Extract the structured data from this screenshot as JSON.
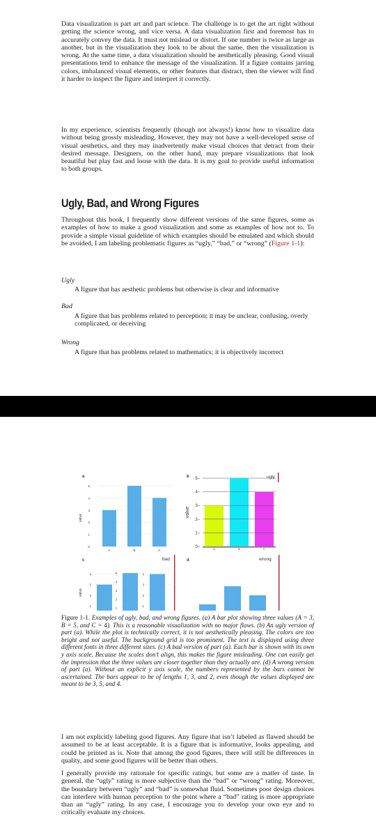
{
  "page1": {
    "para1": "Data visualization is part art and part science. The challenge is to get the art right without getting the science wrong, and vice versa. A data visualization first and foremost has to accurately convey the data. It must not mislead or distort. If one number is twice as large as another, but in the visualization they look to be about the same, then the visualization is wrong. At the same time, a data visualization should be aesthetically pleasing. Good visual presentations tend to enhance the message of the visualization. If a figure contains jarring colors, imbalanced visual elements, or other features that distract, then the viewer will find it harder to inspect the figure and interpret it correctly.",
    "para2": "In my experience, scientists frequently (though not always!) know how to visualize data without being grossly misleading. However, they may not have a well-developed sense of visual aesthetics, and they may inadvertently make visual choices that detract from their desired message. Designers, on the other hand, may prepare visualizations that look beautiful but play fast and loose with the data. It is my goal to provide useful information to both groups.",
    "heading": "Ugly, Bad, and Wrong Figures",
    "para3_before": "Throughout this book, I frequently show different versions of the same figures, some as examples of how to make a good visualization and some as examples of how not to. To provide a simple visual guideline of which examples should be emulated and which should be avoided, I am labeling problematic figures as “ugly,” “bad,” or “wrong” (",
    "para3_ref": "Figure 1-1",
    "para3_after": "):",
    "terms": [
      {
        "term": "Ugly",
        "definition": "A figure that has aesthetic problems but otherwise is clear and informative"
      },
      {
        "term": "Bad",
        "definition": "A figure that has problems related to perception; it may be unclear, confusing, overly complicated, or deceiving"
      },
      {
        "term": "Wrong",
        "definition": "A figure that has problems related to mathematics; it is objectively incorrect"
      }
    ]
  },
  "figure": {
    "panel_labels": [
      "a",
      "b",
      "c",
      "d"
    ],
    "flags": {
      "ugly": "ugly",
      "bad": "bad",
      "wrong": "wrong"
    },
    "ylabel": "value",
    "caption_label": "Figure 1-1.",
    "caption": "Examples of ugly, bad, and wrong figures. (a) A bar plot showing three values (A = 3, B = 5, and C = 4). This is a reasonable visualization with no major flaws. (b) An ugly version of part (a). While the plot is technically correct, it is not aesthetically pleasing. The colors are too bright and not useful. The background grid is too prominent. The text is displayed using three different fonts in three different sizes. (c) A bad version of part (a). Each bar is shown with its own y axis scale. Because the scales don’t align, this makes the figure misleading. One can easily get the impression that the three values are closer together than they actually are. (d) A wrong version of part (a). Without an explicit y axis scale, the numbers represented by the bars cannot be ascertained. The bars appear to be of lengths 1, 3, and 2, even though the values displayed are meant to be 3, 5, and 4."
  },
  "chart_data": [
    {
      "type": "bar",
      "panel": "a",
      "categories": [
        "A",
        "B",
        "C"
      ],
      "values": [
        3,
        5,
        4
      ],
      "ylabel": "value",
      "ylim": [
        0,
        5
      ],
      "yticks": [
        "0",
        "1",
        "2",
        "3",
        "4",
        "5"
      ],
      "color": "#5aaee8",
      "grid": true
    },
    {
      "type": "bar",
      "panel": "b",
      "flag": "ugly",
      "categories": [
        "A",
        "B",
        "C"
      ],
      "values": [
        3,
        5,
        4
      ],
      "ylabel": "value",
      "ylim": [
        0,
        5
      ],
      "yticks": [
        "0",
        "1",
        "2",
        "3",
        "4",
        "5"
      ],
      "colors": [
        "#d8f80e",
        "#12e8f5",
        "#e83ef0"
      ],
      "grid": true
    },
    {
      "type": "bar",
      "panel": "c",
      "flag": "bad",
      "categories": [
        "A",
        "B",
        "C"
      ],
      "values": [
        3,
        5,
        4
      ],
      "ylabel": "value",
      "per_bar_axes": [
        [
          "0",
          "1",
          "2",
          "3",
          "4"
        ],
        [
          "0",
          "1",
          "2",
          "3",
          "4",
          "5"
        ],
        [
          "0",
          "1",
          "2",
          "3",
          "4"
        ]
      ],
      "color": "#5aaee8"
    },
    {
      "type": "bar",
      "panel": "d",
      "flag": "wrong",
      "categories": [
        "A",
        "B",
        "C"
      ],
      "values": [
        3,
        5,
        4
      ],
      "apparent_lengths": [
        1,
        3,
        2
      ],
      "color": "#5aaee8"
    }
  ],
  "page2": {
    "para1": "I am not explicitly labeling good figures. Any figure that isn’t labeled as flawed should be assumed to be at least acceptable. It is a figure that is informative, looks appealing, and could be printed as is. Note that among the good figures, there will still be differences in quality, and some good figures will be better than others.",
    "para2": "I generally provide my rationale for specific ratings, but some are a matter of taste. In general, the “ugly” rating is more subjective than the “bad” or “wrong” rating. Moreover, the boundary between “ugly” and “bad” is somewhat fluid. Sometimes poor design choices can interfere with human perception to the point where a “bad” rating is more appropriate than an “ugly” rating. In any case, I encourage you to develop your own eye and to critically evaluate my choices."
  }
}
